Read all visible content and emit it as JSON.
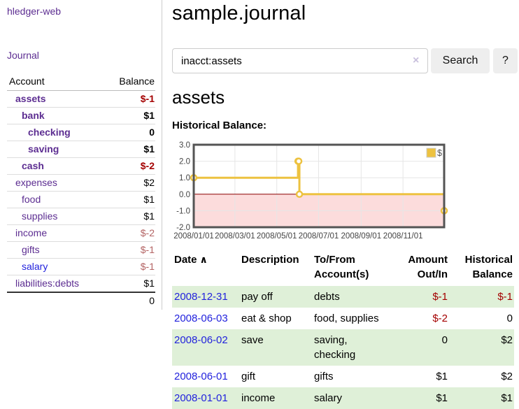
{
  "app": {
    "title": "hledger-web"
  },
  "sidebar": {
    "journal_link": "Journal",
    "header": {
      "account": "Account",
      "balance": "Balance"
    },
    "rows": [
      {
        "account": "assets",
        "depth": 1,
        "bold": true,
        "link_color": "purple",
        "balance": "$-1",
        "balance_style": "neg-strong"
      },
      {
        "account": "bank",
        "depth": 2,
        "bold": true,
        "link_color": "purple",
        "balance": "$1",
        "balance_style": ""
      },
      {
        "account": "checking",
        "depth": 3,
        "bold": true,
        "link_color": "purple",
        "balance": "0",
        "balance_style": ""
      },
      {
        "account": "saving",
        "depth": 3,
        "bold": true,
        "link_color": "purple",
        "balance": "$1",
        "balance_style": ""
      },
      {
        "account": "cash",
        "depth": 2,
        "bold": true,
        "link_color": "purple",
        "balance": "$-2",
        "balance_style": "neg-strong"
      },
      {
        "account": "expenses",
        "depth": 1,
        "bold": false,
        "link_color": "purple",
        "balance": "$2",
        "balance_style": ""
      },
      {
        "account": "food",
        "depth": 2,
        "bold": false,
        "link_color": "purple",
        "balance": "$1",
        "balance_style": ""
      },
      {
        "account": "supplies",
        "depth": 2,
        "bold": false,
        "link_color": "purple",
        "balance": "$1",
        "balance_style": ""
      },
      {
        "account": "income",
        "depth": 1,
        "bold": false,
        "link_color": "purple",
        "balance": "$-2",
        "balance_style": "neg-soft"
      },
      {
        "account": "gifts",
        "depth": 2,
        "bold": false,
        "link_color": "purple",
        "balance": "$-1",
        "balance_style": "neg-soft"
      },
      {
        "account": "salary",
        "depth": 2,
        "bold": false,
        "link_color": "blue",
        "balance": "$-1",
        "balance_style": "neg-soft"
      },
      {
        "account": "liabilities:debts",
        "depth": 1,
        "bold": false,
        "link_color": "purple",
        "balance": "$1",
        "balance_style": ""
      }
    ],
    "total": "0"
  },
  "main": {
    "title": "sample.journal",
    "search": {
      "value": "inacct:assets",
      "clear_icon": "×",
      "button_label": "Search",
      "help_label": "?"
    },
    "account_heading": "assets",
    "chart_label": "Historical Balance:"
  },
  "chart_data": {
    "type": "line",
    "style": "steps",
    "title": "Historical Balance",
    "series": [
      {
        "name": "$",
        "color": "#edc240",
        "points": [
          [
            "2008-01-01",
            1
          ],
          [
            "2008-06-01",
            2
          ],
          [
            "2008-06-02",
            2
          ],
          [
            "2008-06-03",
            0
          ],
          [
            "2008-12-31",
            -1
          ]
        ]
      }
    ],
    "x_ticks": [
      "2008/01/01",
      "2008/03/01",
      "2008/05/01",
      "2008/07/01",
      "2008/09/01",
      "2008/11/01"
    ],
    "y_ticks": [
      3.0,
      2.0,
      1.0,
      0.0,
      -1.0,
      -2.0
    ],
    "xlim": [
      "2008-01-01",
      "2008-12-31"
    ],
    "ylim": [
      -2,
      3
    ],
    "grid": true,
    "negative_region": {
      "from": 0,
      "to": -2,
      "fill": "#fcdcdc",
      "line_color": "#8b0000"
    },
    "legend": {
      "position": "top-right",
      "label": "$"
    },
    "colors": {
      "border": "#545454",
      "gridline": "#e6e6e6",
      "tick_text": "#444444"
    }
  },
  "register_table": {
    "columns": {
      "date": "Date",
      "date_sort_icon": "∧",
      "description": "Description",
      "accounts": "To/From Account(s)",
      "amount": "Amount Out/In",
      "balance": "Historical Balance"
    },
    "rows": [
      {
        "date": "2008-12-31",
        "description": "pay off",
        "accounts": "debts",
        "amount": "$-1",
        "amount_style": "neg-strong",
        "balance": "$-1",
        "balance_style": "neg-strong",
        "stripe": true
      },
      {
        "date": "2008-06-03",
        "description": "eat & shop",
        "accounts": "food, supplies",
        "amount": "$-2",
        "amount_style": "neg-strong",
        "balance": "0",
        "balance_style": "",
        "stripe": false
      },
      {
        "date": "2008-06-02",
        "description": "save",
        "accounts": "saving, checking",
        "amount": "0",
        "amount_style": "",
        "balance": "$2",
        "balance_style": "",
        "stripe": true
      },
      {
        "date": "2008-06-01",
        "description": "gift",
        "accounts": "gifts",
        "amount": "$1",
        "amount_style": "",
        "balance": "$2",
        "balance_style": "",
        "stripe": false
      },
      {
        "date": "2008-01-01",
        "description": "income",
        "accounts": "salary",
        "amount": "$1",
        "amount_style": "",
        "balance": "$1",
        "balance_style": "",
        "stripe": true
      }
    ]
  }
}
